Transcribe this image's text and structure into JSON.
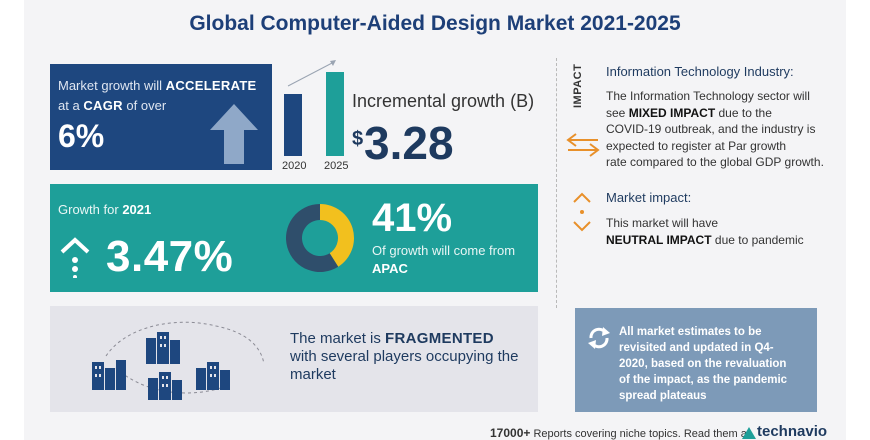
{
  "title": "Global Computer-Aided Design Market 2021-2025",
  "acceleration": {
    "line1_prefix": "Market growth will",
    "line1_bold": "ACCELERATE",
    "line2_prefix": "at a",
    "line2_bold": "CAGR",
    "line2_suffix": "of over",
    "value": "6%"
  },
  "incremental": {
    "label": "Incremental growth (B)",
    "currency": "$",
    "value": "3.28",
    "year_start": "2020",
    "year_end": "2025"
  },
  "growth": {
    "label_prefix": "Growth for",
    "label_year": "2021",
    "value": "3.47%",
    "region_share": "41%",
    "region_text": "Of growth will come from",
    "region": "APAC",
    "region_fraction": 0.41
  },
  "fragmented": {
    "line1_prefix": "The market is",
    "line1_bold": "FRAGMENTED",
    "line2": "with several players occupying the",
    "line3": "market"
  },
  "impact": {
    "vertical_label": "IMPACT",
    "it_title": "Information Technology Industry:",
    "it_body_1": "The Information Technology sector will",
    "it_body_2_prefix": "see",
    "it_body_2_bold": "MIXED IMPACT",
    "it_body_2_suffix": "due to the",
    "it_body_3": "COVID-19 outbreak, and the industry is",
    "it_body_4": "expected to register at Par growth",
    "it_body_5": "rate compared to the global GDP growth.",
    "mi_title": "Market impact:",
    "mi_body_1": "This market will have",
    "mi_body_2_bold": "NEUTRAL IMPACT",
    "mi_body_2_suffix": "due to pandemic"
  },
  "estimates": {
    "text_1": "All market estimates to be",
    "text_2": "revisited and updated in Q4-",
    "text_3": "2020, based on the revaluation",
    "text_4": "of the impact, as the pandemic",
    "text_5": "spread plateaus"
  },
  "footer": {
    "count": "17000+",
    "text": "Reports covering niche topics. Read them at",
    "brand": "technavio"
  },
  "colors": {
    "navy": "#1e477f",
    "teal": "#1e9f99",
    "yellow": "#f2c01e",
    "orange": "#e8902a",
    "slate": "#7d9ab8"
  }
}
